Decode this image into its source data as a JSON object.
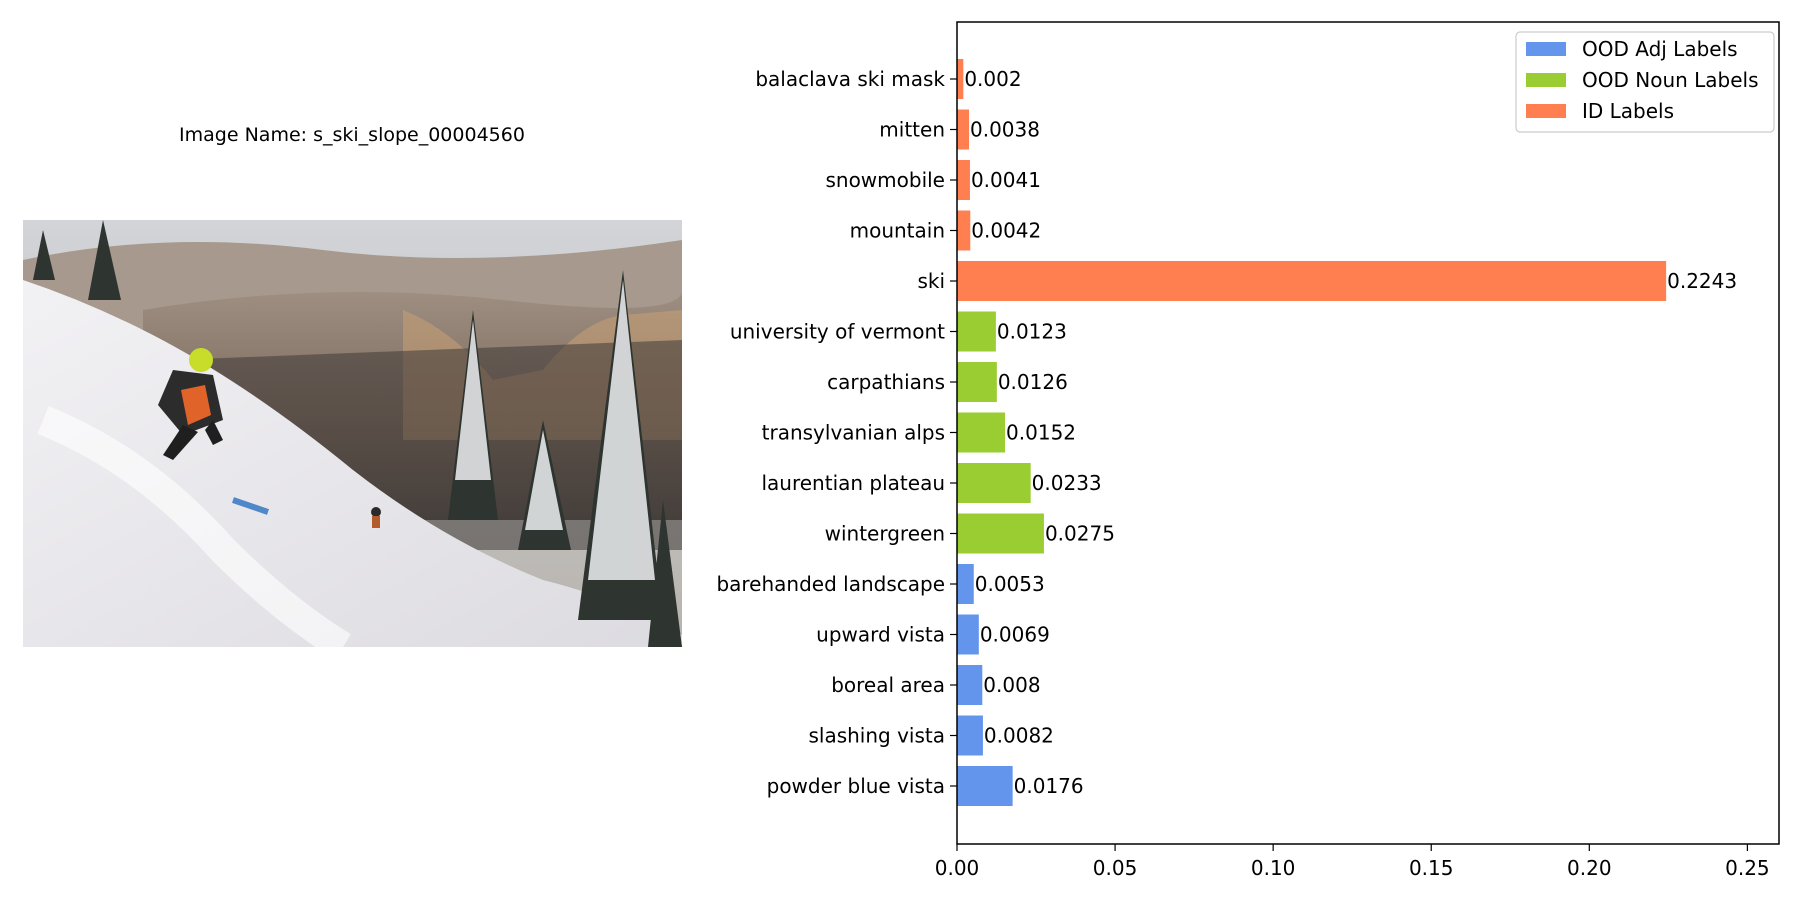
{
  "image_panel": {
    "title": "Image Name: s_ski_slope_00004560"
  },
  "colors": {
    "ood_adj": "#6495ED",
    "ood_noun": "#9ACD32",
    "id": "#FF7F50"
  },
  "chart_data": {
    "type": "bar",
    "orientation": "horizontal",
    "title": "",
    "xlabel": "",
    "ylabel": "",
    "xlim": [
      0,
      0.26
    ],
    "x_ticks": [
      0.0,
      0.05,
      0.1,
      0.15,
      0.2,
      0.25
    ],
    "x_tick_labels": [
      "0.00",
      "0.05",
      "0.10",
      "0.15",
      "0.20",
      "0.25"
    ],
    "grid": false,
    "legend_position": "top-right",
    "legend": [
      {
        "name": "OOD Adj Labels",
        "color": "#6495ED"
      },
      {
        "name": "OOD Noun Labels",
        "color": "#9ACD32"
      },
      {
        "name": "ID Labels",
        "color": "#FF7F50"
      }
    ],
    "bars": [
      {
        "label": "balaclava ski mask",
        "value": 0.002,
        "value_label": "0.002",
        "group": "ID Labels"
      },
      {
        "label": "mitten",
        "value": 0.0038,
        "value_label": "0.0038",
        "group": "ID Labels"
      },
      {
        "label": "snowmobile",
        "value": 0.0041,
        "value_label": "0.0041",
        "group": "ID Labels"
      },
      {
        "label": "mountain",
        "value": 0.0042,
        "value_label": "0.0042",
        "group": "ID Labels"
      },
      {
        "label": "ski",
        "value": 0.2243,
        "value_label": "0.2243",
        "group": "ID Labels"
      },
      {
        "label": "university of vermont",
        "value": 0.0123,
        "value_label": "0.0123",
        "group": "OOD Noun Labels"
      },
      {
        "label": "carpathians",
        "value": 0.0126,
        "value_label": "0.0126",
        "group": "OOD Noun Labels"
      },
      {
        "label": "transylvanian alps",
        "value": 0.0152,
        "value_label": "0.0152",
        "group": "OOD Noun Labels"
      },
      {
        "label": "laurentian plateau",
        "value": 0.0233,
        "value_label": "0.0233",
        "group": "OOD Noun Labels"
      },
      {
        "label": "wintergreen",
        "value": 0.0275,
        "value_label": "0.0275",
        "group": "OOD Noun Labels"
      },
      {
        "label": "barehanded landscape",
        "value": 0.0053,
        "value_label": "0.0053",
        "group": "OOD Adj Labels"
      },
      {
        "label": "upward vista",
        "value": 0.0069,
        "value_label": "0.0069",
        "group": "OOD Adj Labels"
      },
      {
        "label": "boreal area",
        "value": 0.008,
        "value_label": "0.008",
        "group": "OOD Adj Labels"
      },
      {
        "label": "slashing vista",
        "value": 0.0082,
        "value_label": "0.0082",
        "group": "OOD Adj Labels"
      },
      {
        "label": "powder blue vista",
        "value": 0.0176,
        "value_label": "0.0176",
        "group": "OOD Adj Labels"
      }
    ]
  }
}
